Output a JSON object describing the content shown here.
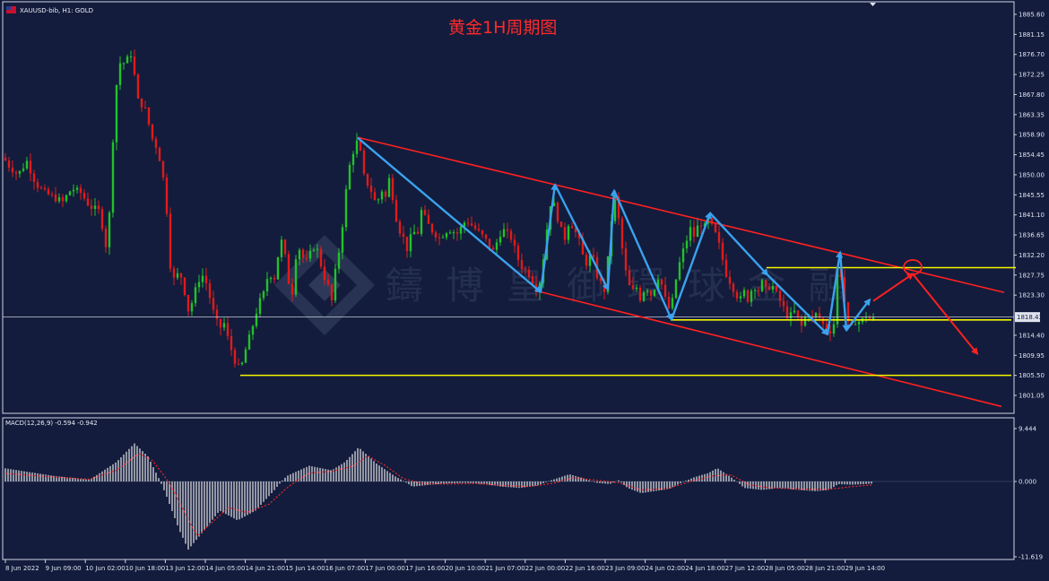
{
  "window": {
    "symbol_header": "XAUUSD-bib, H1:  GOLD",
    "title": "黄金1H周期图",
    "watermark": "鑄 博 皇 御 環 球 金 融"
  },
  "colors": {
    "background": "#131c3c",
    "bull": "#22c22a",
    "bear": "#e01b1b",
    "channel": "#ff2020",
    "support": "#f5f500",
    "wave": "#3aa2ee",
    "projection": "#ff2020",
    "price_line": "#c8ccd8",
    "macd_hist": "#e8e8e8",
    "macd_signal": "#ff2a2a"
  },
  "chart_data": [
    {
      "type": "candlestick",
      "title": "黄金1H周期图",
      "symbol": "XAUUSD-bib",
      "timeframe": "H1",
      "ylim": [
        1798.0,
        1887.5
      ],
      "y_ticks": [
        "1885.60",
        "1881.15",
        "1876.70",
        "1872.25",
        "1867.80",
        "1863.35",
        "1858.90",
        "1854.45",
        "1850.00",
        "1845.55",
        "1841.10",
        "1836.65",
        "1832.20",
        "1827.75",
        "1823.30",
        "1814.40",
        "1809.95",
        "1805.50",
        "1801.05"
      ],
      "y_tick_values": [
        1885.6,
        1881.15,
        1876.7,
        1872.25,
        1867.8,
        1863.35,
        1858.9,
        1854.45,
        1850.0,
        1845.55,
        1841.1,
        1836.65,
        1832.2,
        1827.75,
        1823.3,
        1814.4,
        1809.95,
        1805.5,
        1801.05
      ],
      "current_price": "1818.43",
      "current_price_value": 1818.43,
      "x_ticks": [
        "8 Jun 2022",
        "9 Jun 09:00",
        "10 Jun 02:00",
        "10 Jun 18:00",
        "13 Jun 12:00",
        "14 Jun 05:00",
        "14 Jun 21:00",
        "15 Jun 14:00",
        "16 Jun 07:00",
        "17 Jun 00:00",
        "17 Jun 16:00",
        "20 Jun 10:00",
        "21 Jun 07:00",
        "22 Jun 00:00",
        "22 Jun 16:00",
        "23 Jun 09:00",
        "24 Jun 02:00",
        "24 Jun 18:00",
        "27 Jun 12:00",
        "28 Jun 05:00",
        "28 Jun 21:00",
        "29 Jun 14:00"
      ],
      "price_path": [
        [
          0,
          1855
        ],
        [
          10,
          1852
        ],
        [
          20,
          1850
        ],
        [
          30,
          1853
        ],
        [
          40,
          1848
        ],
        [
          50,
          1846
        ],
        [
          60,
          1845
        ],
        [
          70,
          1844
        ],
        [
          80,
          1847
        ],
        [
          90,
          1846
        ],
        [
          100,
          1843
        ],
        [
          110,
          1842
        ],
        [
          115,
          1838
        ],
        [
          120,
          1832
        ],
        [
          125,
          1855
        ],
        [
          130,
          1870
        ],
        [
          135,
          1876
        ],
        [
          140,
          1874
        ],
        [
          145,
          1878
        ],
        [
          150,
          1872
        ],
        [
          155,
          1865
        ],
        [
          160,
          1866
        ],
        [
          165,
          1862
        ],
        [
          170,
          1858
        ],
        [
          175,
          1856
        ],
        [
          180,
          1852
        ],
        [
          185,
          1845
        ],
        [
          190,
          1830
        ],
        [
          195,
          1826
        ],
        [
          200,
          1829
        ],
        [
          205,
          1825
        ],
        [
          210,
          1820
        ],
        [
          215,
          1822
        ],
        [
          220,
          1826
        ],
        [
          225,
          1828
        ],
        [
          230,
          1826
        ],
        [
          235,
          1822
        ],
        [
          240,
          1818
        ],
        [
          245,
          1816
        ],
        [
          250,
          1817
        ],
        [
          255,
          1813
        ],
        [
          260,
          1810
        ],
        [
          265,
          1807
        ],
        [
          270,
          1808
        ],
        [
          275,
          1812
        ],
        [
          280,
          1815
        ],
        [
          285,
          1819
        ],
        [
          290,
          1822
        ],
        [
          295,
          1824
        ],
        [
          300,
          1829
        ],
        [
          305,
          1826
        ],
        [
          310,
          1832
        ],
        [
          315,
          1836
        ],
        [
          320,
          1829
        ],
        [
          325,
          1822
        ],
        [
          330,
          1832
        ],
        [
          335,
          1834
        ],
        [
          340,
          1830
        ],
        [
          345,
          1832
        ],
        [
          350,
          1834
        ],
        [
          355,
          1833
        ],
        [
          360,
          1828
        ],
        [
          365,
          1826
        ],
        [
          370,
          1822
        ],
        [
          375,
          1830
        ],
        [
          380,
          1835
        ],
        [
          385,
          1845
        ],
        [
          390,
          1852
        ],
        [
          395,
          1856
        ],
        [
          400,
          1858
        ],
        [
          405,
          1850
        ],
        [
          410,
          1848
        ],
        [
          415,
          1846
        ],
        [
          420,
          1843
        ],
        [
          425,
          1847
        ],
        [
          430,
          1845
        ],
        [
          435,
          1850
        ],
        [
          440,
          1842
        ],
        [
          445,
          1838
        ],
        [
          450,
          1836
        ],
        [
          455,
          1833
        ],
        [
          460,
          1838
        ],
        [
          465,
          1836
        ],
        [
          470,
          1842
        ],
        [
          475,
          1840
        ],
        [
          480,
          1838
        ],
        [
          490,
          1836
        ],
        [
          500,
          1838
        ],
        [
          510,
          1837
        ],
        [
          520,
          1840
        ],
        [
          530,
          1838
        ],
        [
          540,
          1836
        ],
        [
          550,
          1833
        ],
        [
          560,
          1838
        ],
        [
          570,
          1836
        ],
        [
          580,
          1830
        ],
        [
          590,
          1828
        ],
        [
          600,
          1824
        ],
        [
          605,
          1830
        ],
        [
          610,
          1838
        ],
        [
          615,
          1845
        ],
        [
          620,
          1842
        ],
        [
          625,
          1838
        ],
        [
          630,
          1836
        ],
        [
          635,
          1840
        ],
        [
          640,
          1838
        ],
        [
          645,
          1836
        ],
        [
          650,
          1832
        ],
        [
          655,
          1830
        ],
        [
          660,
          1833
        ],
        [
          665,
          1828
        ],
        [
          670,
          1826
        ],
        [
          675,
          1824
        ],
        [
          680,
          1836
        ],
        [
          685,
          1846
        ],
        [
          690,
          1840
        ],
        [
          695,
          1832
        ],
        [
          700,
          1826
        ],
        [
          705,
          1824
        ],
        [
          710,
          1825
        ],
        [
          715,
          1822
        ],
        [
          720,
          1826
        ],
        [
          725,
          1823
        ],
        [
          730,
          1825
        ],
        [
          735,
          1828
        ],
        [
          740,
          1824
        ],
        [
          745,
          1820
        ],
        [
          750,
          1822
        ],
        [
          755,
          1828
        ],
        [
          760,
          1832
        ],
        [
          765,
          1835
        ],
        [
          770,
          1838
        ],
        [
          775,
          1836
        ],
        [
          780,
          1840
        ],
        [
          785,
          1838
        ],
        [
          790,
          1840
        ],
        [
          795,
          1838
        ],
        [
          800,
          1836
        ],
        [
          805,
          1832
        ],
        [
          810,
          1828
        ],
        [
          815,
          1826
        ],
        [
          820,
          1824
        ],
        [
          825,
          1822
        ],
        [
          830,
          1824
        ],
        [
          835,
          1822
        ],
        [
          840,
          1826
        ],
        [
          845,
          1824
        ],
        [
          850,
          1826
        ],
        [
          855,
          1824
        ],
        [
          860,
          1826
        ],
        [
          865,
          1824
        ],
        [
          870,
          1822
        ],
        [
          875,
          1820
        ],
        [
          880,
          1818
        ],
        [
          885,
          1820
        ],
        [
          890,
          1818
        ],
        [
          895,
          1816
        ],
        [
          900,
          1820
        ],
        [
          905,
          1818
        ],
        [
          910,
          1819
        ],
        [
          915,
          1818
        ],
        [
          920,
          1816
        ],
        [
          925,
          1815
        ],
        [
          930,
          1817
        ],
        [
          935,
          1832
        ],
        [
          940,
          1825
        ],
        [
          945,
          1817
        ],
        [
          950,
          1816
        ],
        [
          955,
          1818
        ],
        [
          960,
          1817
        ],
        [
          965,
          1819
        ],
        [
          970,
          1818
        ],
        [
          975,
          1818
        ]
      ],
      "trend_lines": [
        {
          "kind": "channel_upper",
          "from": [
            399,
            1858.3
          ],
          "to": [
            1120,
            1823.9
          ]
        },
        {
          "kind": "channel_lower",
          "from": [
            603,
            1824.0
          ],
          "to": [
            1117,
            1798.6
          ]
        },
        {
          "kind": "support",
          "from": [
            268,
            1805.5
          ],
          "to": [
            1128,
            1805.5
          ]
        },
        {
          "kind": "resistance",
          "from": [
            855,
            1829.4
          ],
          "to": [
            1133,
            1829.4
          ]
        },
        {
          "kind": "support",
          "from": [
            748,
            1817.8
          ],
          "to": [
            1128,
            1817.8
          ]
        }
      ],
      "wave_path": [
        [
          399,
          1858.2
        ],
        [
          603,
          1824.0
        ],
        [
          619,
          1847.8
        ],
        [
          678,
          1824.6
        ],
        [
          685,
          1846.5
        ],
        [
          749,
          1817.9
        ],
        [
          792,
          1841.5
        ],
        [
          856,
          1827.8
        ],
        [
          923,
          1814.6
        ],
        [
          937,
          1832.8
        ],
        [
          944,
          1815.5
        ],
        [
          970,
          1822.3
        ]
      ],
      "projection_path": [
        [
          974,
          1822.0
        ],
        [
          1018,
          1828.0
        ],
        [
          1090,
          1810.3
        ]
      ],
      "projection_marker": {
        "x": 1018,
        "price": 1829.5
      }
    },
    {
      "type": "bar",
      "indicator": "MACD",
      "label": "MACD(12,26,9) -0.594 -0.942",
      "ylim": [
        -11.619,
        9.444
      ],
      "y_ticks": [
        "9.444",
        "0.000",
        "-11.619"
      ],
      "y_tick_values": [
        9.444,
        0.0,
        -11.619
      ],
      "series": [
        {
          "name": "histogram",
          "keypoints": [
            [
              0,
              2.5
            ],
            [
              60,
              1.0
            ],
            [
              100,
              0.3
            ],
            [
              130,
              3.5
            ],
            [
              150,
              6.8
            ],
            [
              165,
              4.5
            ],
            [
              185,
              -2.0
            ],
            [
              200,
              -7.5
            ],
            [
              210,
              -10.5
            ],
            [
              225,
              -8.0
            ],
            [
              245,
              -4.5
            ],
            [
              265,
              -6.0
            ],
            [
              285,
              -4.5
            ],
            [
              305,
              -1.5
            ],
            [
              320,
              1.0
            ],
            [
              345,
              2.8
            ],
            [
              370,
              2.0
            ],
            [
              385,
              3.5
            ],
            [
              400,
              6.1
            ],
            [
              420,
              3.2
            ],
            [
              440,
              1.0
            ],
            [
              460,
              -0.8
            ],
            [
              480,
              -0.5
            ],
            [
              500,
              -0.3
            ],
            [
              520,
              -0.2
            ],
            [
              540,
              -0.4
            ],
            [
              560,
              -0.8
            ],
            [
              580,
              -1.0
            ],
            [
              600,
              -0.6
            ],
            [
              620,
              0.5
            ],
            [
              635,
              1.3
            ],
            [
              650,
              0.6
            ],
            [
              665,
              -0.2
            ],
            [
              680,
              -0.4
            ],
            [
              690,
              0.2
            ],
            [
              700,
              -1.0
            ],
            [
              715,
              -1.8
            ],
            [
              730,
              -1.5
            ],
            [
              745,
              -1.2
            ],
            [
              760,
              -0.2
            ],
            [
              775,
              0.8
            ],
            [
              790,
              1.5
            ],
            [
              800,
              2.4
            ],
            [
              815,
              0.8
            ],
            [
              830,
              -1.0
            ],
            [
              850,
              -1.3
            ],
            [
              870,
              -1.0
            ],
            [
              890,
              -1.3
            ],
            [
              910,
              -1.5
            ],
            [
              925,
              -1.3
            ],
            [
              935,
              -0.4
            ],
            [
              950,
              -0.5
            ],
            [
              965,
              -0.4
            ],
            [
              975,
              -0.3
            ]
          ]
        },
        {
          "name": "signal",
          "keypoints": [
            [
              0,
              1.5
            ],
            [
              60,
              0.8
            ],
            [
              100,
              0.4
            ],
            [
              130,
              2.0
            ],
            [
              155,
              5.0
            ],
            [
              170,
              3.8
            ],
            [
              190,
              -0.5
            ],
            [
              205,
              -4.5
            ],
            [
              220,
              -8.5
            ],
            [
              235,
              -6.5
            ],
            [
              255,
              -4.0
            ],
            [
              275,
              -4.8
            ],
            [
              300,
              -3.5
            ],
            [
              320,
              -1.0
            ],
            [
              345,
              1.5
            ],
            [
              370,
              1.8
            ],
            [
              395,
              2.8
            ],
            [
              410,
              4.6
            ],
            [
              430,
              2.8
            ],
            [
              450,
              0.5
            ],
            [
              470,
              -0.3
            ],
            [
              500,
              -0.4
            ],
            [
              530,
              -0.3
            ],
            [
              560,
              -0.6
            ],
            [
              590,
              -0.8
            ],
            [
              620,
              -0.2
            ],
            [
              640,
              0.7
            ],
            [
              660,
              0.3
            ],
            [
              690,
              -0.2
            ],
            [
              715,
              -1.3
            ],
            [
              745,
              -1.1
            ],
            [
              770,
              0.0
            ],
            [
              795,
              1.0
            ],
            [
              815,
              1.2
            ],
            [
              835,
              -0.5
            ],
            [
              860,
              -1.0
            ],
            [
              900,
              -1.2
            ],
            [
              925,
              -1.2
            ],
            [
              950,
              -0.8
            ],
            [
              975,
              -0.5
            ]
          ]
        }
      ]
    }
  ]
}
